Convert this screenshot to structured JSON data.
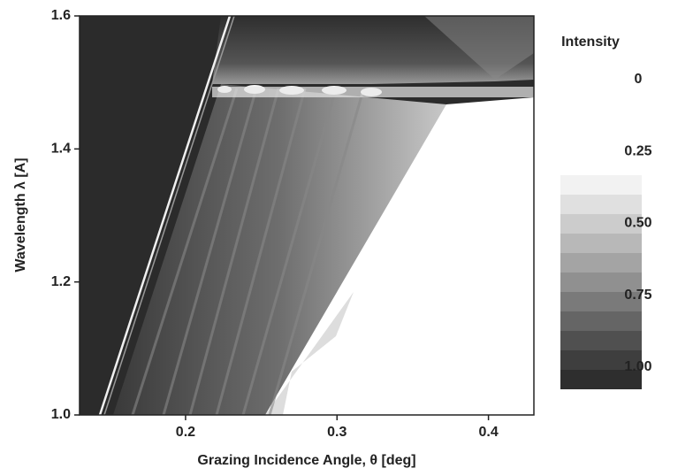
{
  "chart_data": {
    "type": "contour",
    "xlabel": "Grazing Incidence Angle, θ [deg]",
    "ylabel": "Wavelength λ [A]",
    "xlim": [
      0.13,
      0.43
    ],
    "xticks": [
      0.2,
      0.3,
      0.4
    ],
    "ylim": [
      1.0,
      1.6
    ],
    "yticks": [
      {
        "value": 1.0,
        "label": "1.0"
      },
      1.2,
      1.4,
      1.6
    ],
    "colorbar": {
      "title": "Intensity",
      "ticks": [
        0,
        0.25,
        {
          "value": 0.5,
          "label": "0.50"
        },
        0.75,
        {
          "value": 1,
          "label": "1.00"
        }
      ]
    }
  }
}
